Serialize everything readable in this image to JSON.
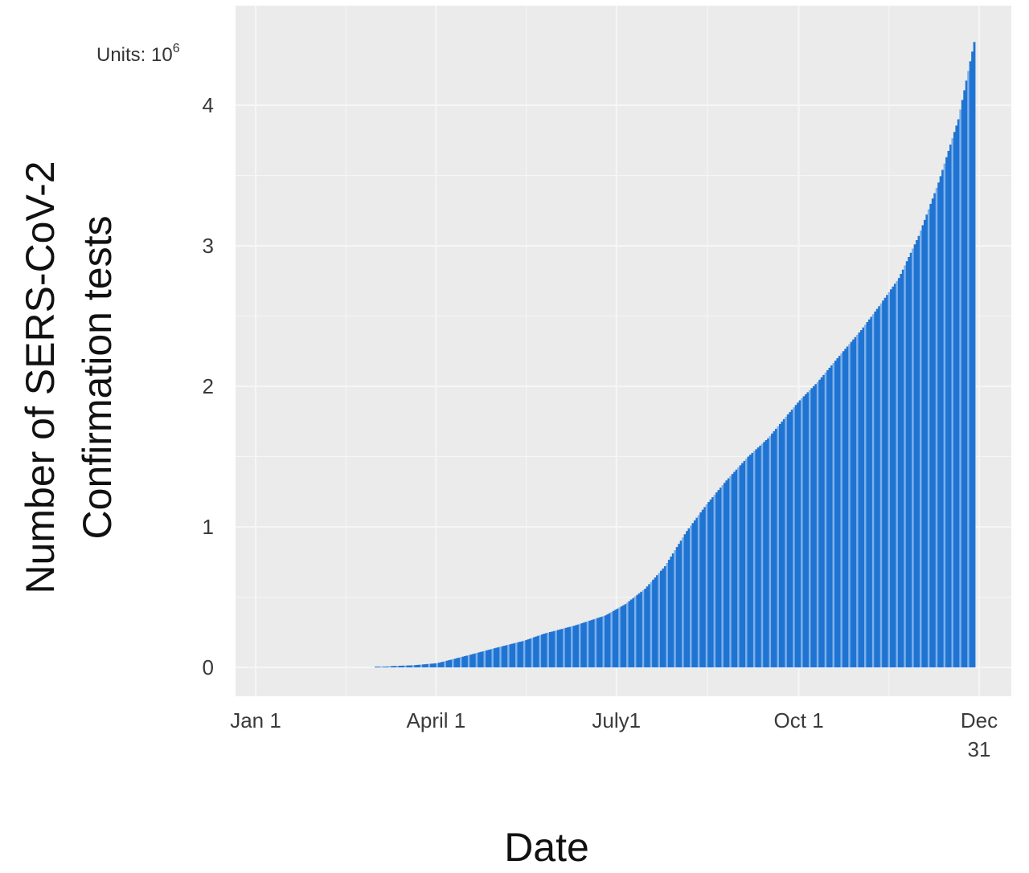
{
  "chart_data": {
    "type": "bar",
    "title": "",
    "ylabel_lines": [
      "Number of SERS-CoV-2",
      "Confirmation tests"
    ],
    "xlabel": "Date",
    "units_label": {
      "prefix": "Units: 10",
      "exponent": "6"
    },
    "ylim": [
      0,
      4.5
    ],
    "y_ticks": [
      0,
      1,
      2,
      3,
      4
    ],
    "x_domain": [
      "2020-01-01",
      "2020-12-31"
    ],
    "x_ticks": [
      {
        "date": "2020-01-01",
        "label": [
          "Jan 1"
        ]
      },
      {
        "date": "2020-04-01",
        "label": [
          "April 1"
        ]
      },
      {
        "date": "2020-07-01",
        "label": [
          "July1"
        ]
      },
      {
        "date": "2020-10-01",
        "label": [
          "Oct 1"
        ]
      },
      {
        "date": "2020-12-31",
        "label": [
          "Dec",
          "31"
        ]
      }
    ],
    "grid": true,
    "series": [
      {
        "values_by_date": [
          [
            "2020-03-01",
            0.0
          ],
          [
            "2020-03-10",
            0.01
          ],
          [
            "2020-03-20",
            0.015
          ],
          [
            "2020-04-01",
            0.03
          ],
          [
            "2020-04-15",
            0.08
          ],
          [
            "2020-05-01",
            0.14
          ],
          [
            "2020-05-15",
            0.19
          ],
          [
            "2020-05-25",
            0.24
          ],
          [
            "2020-06-10",
            0.3
          ],
          [
            "2020-06-25",
            0.37
          ],
          [
            "2020-07-05",
            0.45
          ],
          [
            "2020-07-15",
            0.56
          ],
          [
            "2020-07-25",
            0.72
          ],
          [
            "2020-08-05",
            0.97
          ],
          [
            "2020-08-15",
            1.16
          ],
          [
            "2020-08-25",
            1.33
          ],
          [
            "2020-09-05",
            1.5
          ],
          [
            "2020-09-15",
            1.63
          ],
          [
            "2020-09-25",
            1.8
          ],
          [
            "2020-10-01",
            1.9
          ],
          [
            "2020-10-10",
            2.03
          ],
          [
            "2020-10-20",
            2.2
          ],
          [
            "2020-11-01",
            2.4
          ],
          [
            "2020-11-10",
            2.57
          ],
          [
            "2020-11-20",
            2.77
          ],
          [
            "2020-11-30",
            3.07
          ],
          [
            "2020-12-10",
            3.45
          ],
          [
            "2020-12-20",
            3.9
          ],
          [
            "2020-12-28",
            4.45
          ]
        ]
      }
    ],
    "colors": {
      "bar": "#1f74d2",
      "bar_gap": "#7fb0ea",
      "panel": "#ebebeb",
      "gridline": "#f6f6f6"
    }
  }
}
